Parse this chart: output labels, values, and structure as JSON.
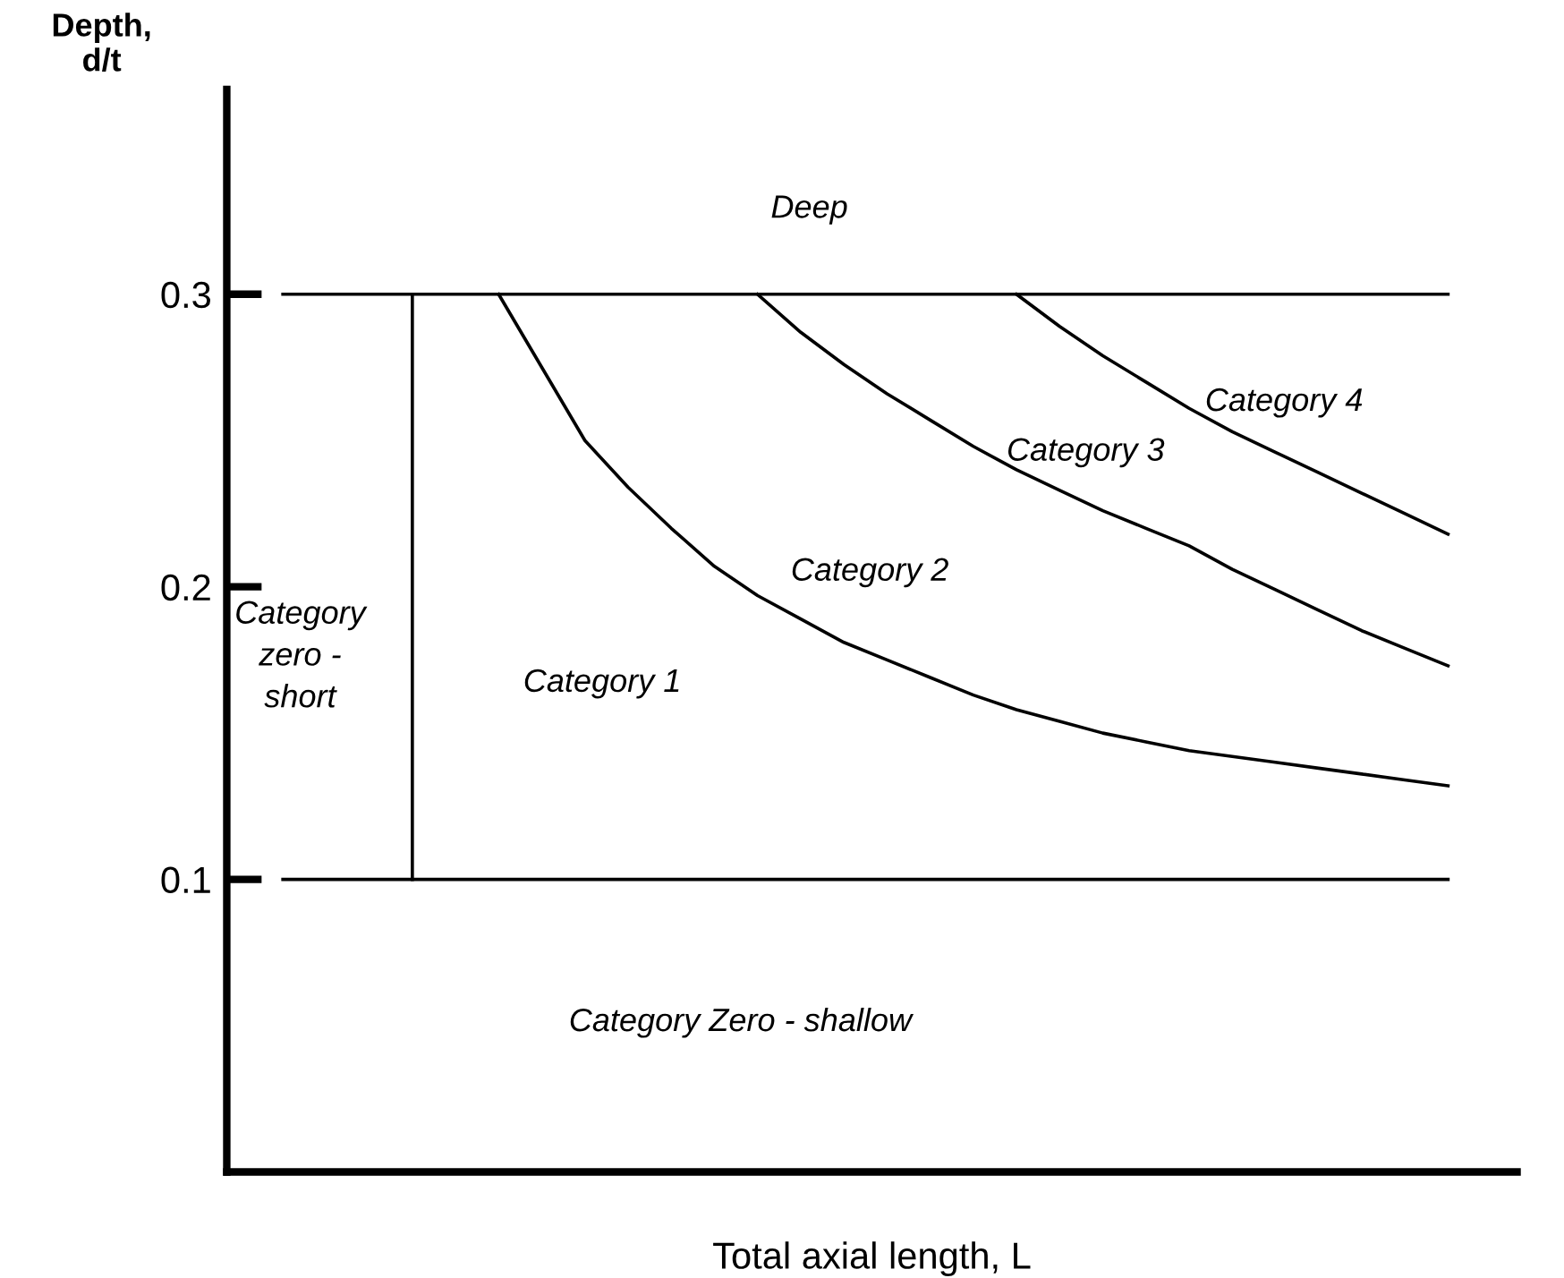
{
  "chart_data": {
    "type": "line",
    "xlabel": "Total axial length, L",
    "ylabel": "Depth,\nd/t",
    "categories": [
      null,
      null,
      null,
      null,
      null,
      null,
      null,
      null,
      null,
      null,
      null,
      null,
      null,
      null,
      null,
      null,
      null,
      null,
      null,
      null,
      null,
      null,
      null,
      null,
      null,
      null,
      null,
      null
    ],
    "series": [
      {
        "color": "#000000",
        "values": [
          0.3,
          0.3,
          0.3,
          0.3,
          0.3,
          0.3,
          0.3,
          0.3,
          0.3,
          0.3,
          0.3,
          0.3,
          0.3,
          0.3,
          0.3,
          0.3,
          0.3,
          0.3,
          0.3,
          0.3,
          0.3,
          0.3,
          0.3,
          0.3,
          0.3,
          0.3,
          0.3,
          0.3
        ]
      },
      {
        "color": "#000000",
        "values": [
          0.1,
          0.1,
          0.1,
          0.1,
          0.1,
          0.1,
          0.1,
          0.1,
          0.1,
          0.1,
          0.1,
          0.1,
          0.1,
          0.1,
          0.1,
          0.1,
          0.1,
          0.1,
          0.1,
          0.1,
          0.1,
          0.1,
          0.1,
          0.1,
          0.1,
          0.1,
          0.1,
          0.1
        ]
      },
      {
        "color": "#000000",
        "values": [
          null,
          null,
          null,
          null,
          null,
          0.3,
          0.275,
          0.25,
          0.234,
          0.22,
          0.207,
          0.197,
          0.189,
          0.181,
          0.175,
          0.169,
          0.163,
          0.158,
          0.154,
          0.15,
          0.147,
          0.144,
          0.142,
          0.14,
          0.138,
          0.136,
          0.134,
          0.132
        ]
      },
      {
        "color": "#000000",
        "values": [
          null,
          null,
          null,
          null,
          null,
          null,
          null,
          null,
          null,
          null,
          null,
          0.3,
          0.287,
          0.276,
          0.266,
          0.257,
          0.248,
          0.24,
          0.233,
          0.226,
          0.22,
          0.214,
          0.206,
          0.199,
          0.192,
          0.185,
          0.179,
          0.173
        ]
      },
      {
        "color": "#000000",
        "values": [
          null,
          null,
          null,
          null,
          null,
          null,
          null,
          null,
          null,
          null,
          null,
          null,
          null,
          null,
          null,
          null,
          null,
          0.3,
          0.289,
          0.279,
          0.27,
          0.261,
          0.253,
          0.246,
          0.239,
          0.232,
          0.225,
          0.218
        ]
      }
    ],
    "annotations": [
      "Deep",
      "Category 4",
      "Category 3",
      "Category 2",
      "Category 1",
      "Category\nzero -\nshort",
      "Category Zero - shallow"
    ],
    "ylim": [
      0,
      0.37
    ],
    "yticks": [
      0.1,
      0.2,
      0.3
    ],
    "grid": false,
    "legend": false,
    "tick_labels": "y",
    "marker": "none",
    "line_style": "solid"
  }
}
